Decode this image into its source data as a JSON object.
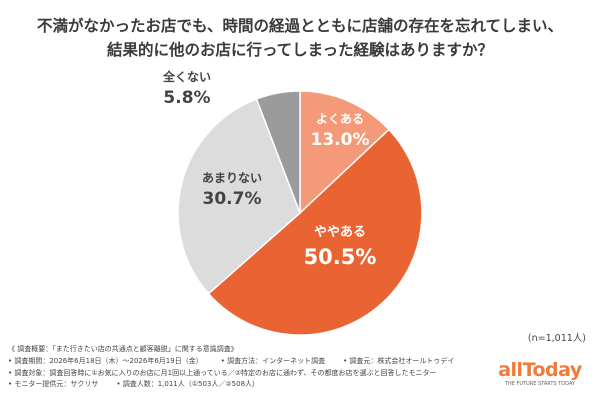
{
  "title_line1": "不満がなかったお店でも、時間の経過とともに店舗の存在を忘れてしまい、",
  "title_line2": "結果的に他のお店に行ってしまった経験はありますか？",
  "sample_note": "(n=1,011人)",
  "chart_data": {
    "type": "pie",
    "start_angle_deg": 0,
    "direction": "clockwise",
    "slices": [
      {
        "label": "よくある",
        "value": 13.0,
        "display": "13.0%",
        "color": "#F59A78",
        "text_color": "#ffffff"
      },
      {
        "label": "ややある",
        "value": 50.5,
        "display": "50.5%",
        "color": "#EA6433",
        "text_color": "#ffffff"
      },
      {
        "label": "あまりない",
        "value": 30.7,
        "display": "30.7%",
        "color": "#DCDCDC",
        "text_color": "#444444"
      },
      {
        "label": "全くない",
        "value": 5.8,
        "display": "5.8%",
        "color": "#9B9B9B",
        "text_color": "#444444",
        "label_outside": true
      }
    ]
  },
  "notes": {
    "header": "《 調査概要：「また行きたい店の共通点と顧客離脱」に関する意識調査》",
    "period": "• 調査期間：2026年6月18日（木）～2026年6月19日（金）",
    "method": "• 調査方法：インターネット調査",
    "org": "• 調査元：株式会社オールトゥデイ",
    "target": "• 調査対象：調査回答時に①お気に入りのお店に月1回以上通っている／②特定のお店に通わず、その都度お店を選ぶと回答したモニター",
    "provider": "• モニター提供元：サクリサ",
    "count": "• 調査人数：1,011人（①503人／②508人）"
  },
  "logo": {
    "text": "allToday",
    "tagline": "THE FUTURE STARTS TODAY",
    "color": "#F07A3A"
  }
}
